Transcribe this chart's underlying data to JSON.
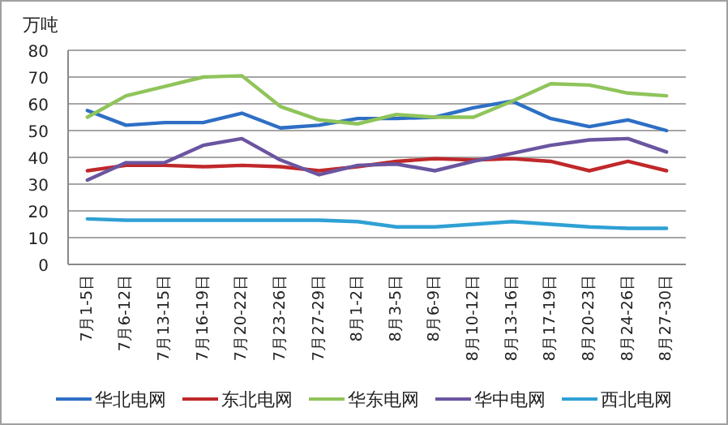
{
  "chart_data": {
    "type": "line",
    "ylabel": "万吨",
    "categories": [
      "7月1-5日",
      "7月6-12日",
      "7月13-15日",
      "7月16-19日",
      "7月20-22日",
      "7月23-26日",
      "7月27-29日",
      "8月1-2日",
      "8月3-5日",
      "8月6-9日",
      "8月10-12日",
      "8月13-16日",
      "8月17-19日",
      "8月20-23日",
      "8月24-26日",
      "8月27-30日"
    ],
    "series": [
      {
        "name": "华北电网",
        "color": "#2e6fc5",
        "values": [
          57.5,
          52,
          53,
          53,
          56.5,
          51,
          52,
          54.5,
          54.5,
          55,
          58.5,
          61,
          54.5,
          51.5,
          54,
          50
        ]
      },
      {
        "name": "东北电网",
        "color": "#c0282a",
        "values": [
          35,
          37,
          37,
          36.5,
          37,
          36.5,
          35,
          36.5,
          38.5,
          39.5,
          39,
          39.5,
          38.5,
          35,
          38.5,
          35
        ]
      },
      {
        "name": "华东电网",
        "color": "#8fc45a",
        "values": [
          55,
          63,
          66.5,
          70,
          70.5,
          59,
          54,
          52.5,
          56,
          55,
          55,
          61,
          67.5,
          67,
          64,
          63
        ]
      },
      {
        "name": "华中电网",
        "color": "#6a55a0",
        "values": [
          31.5,
          38,
          38,
          44.5,
          47,
          39,
          33.5,
          37,
          37.5,
          35,
          38.5,
          41.5,
          44.5,
          46.5,
          47,
          42
        ]
      },
      {
        "name": "西北电网",
        "color": "#2fa0d4",
        "values": [
          17,
          16.5,
          16.5,
          16.5,
          16.5,
          16.5,
          16.5,
          16,
          14,
          14,
          15,
          16,
          15,
          14,
          13.5,
          13.5
        ]
      }
    ],
    "ylim": [
      0,
      80
    ],
    "yticks": [
      0,
      10,
      20,
      30,
      40,
      50,
      60,
      70,
      80
    ],
    "grid": "y",
    "legend": "bottom",
    "marker": "none",
    "line_style": "solid"
  }
}
